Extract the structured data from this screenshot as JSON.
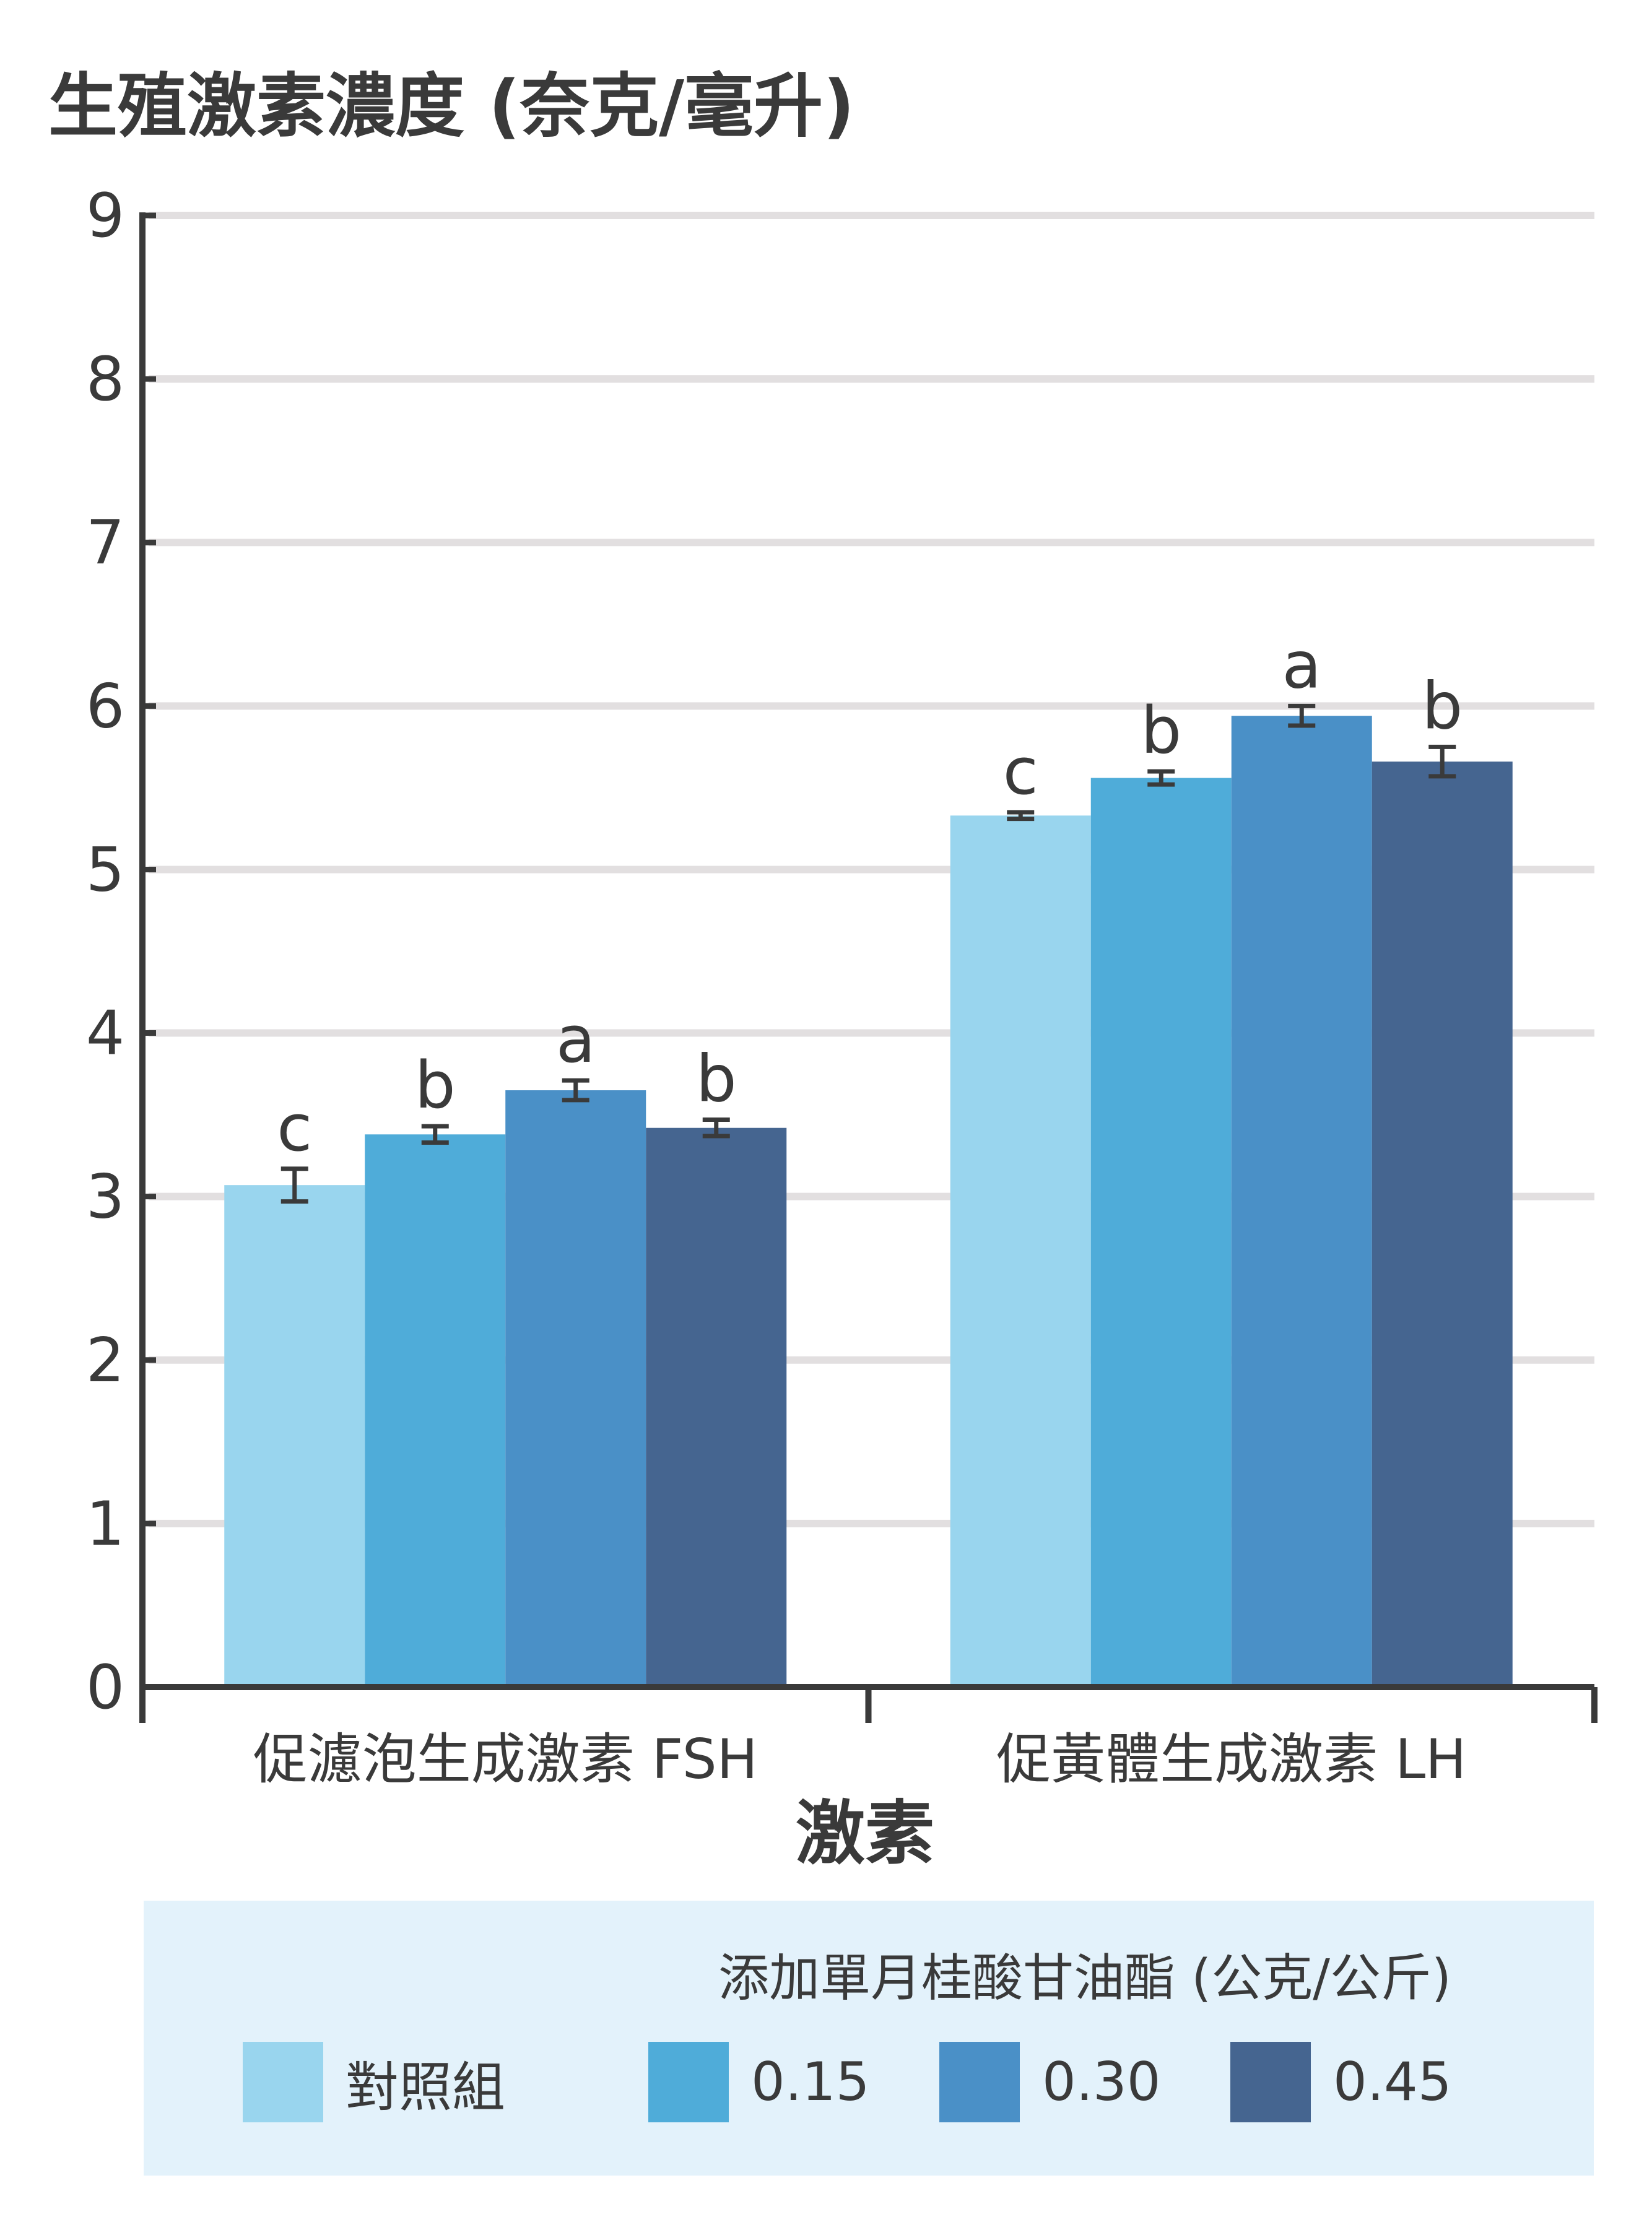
{
  "chart_data": {
    "type": "bar",
    "title": "生殖激素濃度 (奈克/毫升)",
    "xlabel": "激素",
    "ylabel": "",
    "ylim": [
      0,
      9
    ],
    "yticks": [
      "0",
      "1",
      "2",
      "3",
      "4",
      "5",
      "6",
      "7",
      "8",
      "9"
    ],
    "categories": [
      "促濾泡生成激素 FSH",
      "促黃體生成激素 LH"
    ],
    "legend_title": "添加單月桂酸甘油酯 (公克/公斤)",
    "legend_position": "bottom",
    "grid": true,
    "series": [
      {
        "name": "對照組",
        "color": "#99d5ee",
        "values": [
          3.07,
          5.33
        ],
        "errors": [
          0.1,
          0.02
        ],
        "letters": [
          "c",
          "c"
        ]
      },
      {
        "name": "0.15",
        "color": "#4facd9",
        "values": [
          3.38,
          5.56
        ],
        "errors": [
          0.05,
          0.04
        ],
        "letters": [
          "b",
          "b"
        ]
      },
      {
        "name": "0.30",
        "color": "#4a90c7",
        "values": [
          3.65,
          5.94
        ],
        "errors": [
          0.06,
          0.06
        ],
        "letters": [
          "a",
          "a"
        ]
      },
      {
        "name": "0.45",
        "color": "#456590",
        "values": [
          3.42,
          5.66
        ],
        "errors": [
          0.05,
          0.09
        ],
        "letters": [
          "b",
          "b"
        ]
      }
    ]
  }
}
